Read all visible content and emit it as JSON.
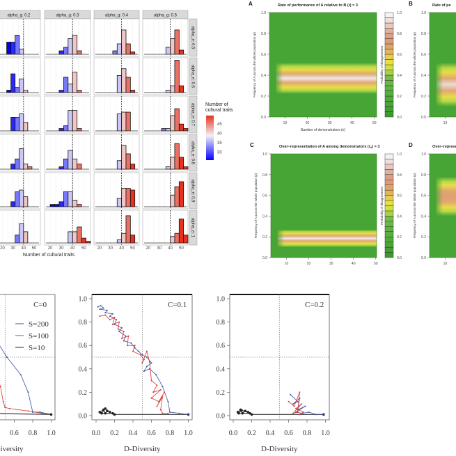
{
  "chart_data": [
    {
      "type": "bar",
      "strips_top": [
        "alpha_g: 0.2",
        "alpha_g: 0.3",
        "alpha_g: 0.4",
        "alpha_g: 0.5"
      ],
      "strips_right": [
        "alpha_e: 0.5",
        "alpha_e: 0.6",
        "alpha_e: 0.7",
        "alpha_e: 0.8",
        "alpha_e: 0.9",
        "alpha_e: 1"
      ],
      "x_ticks": [
        20,
        30,
        40,
        50
      ],
      "xlabel": "Number of cultural traits",
      "reference_line": 40,
      "bin_width": 4,
      "panels": [
        [
          {
            "start": 24,
            "heights": [
              0.35,
              0.35,
              0.55,
              0.15
            ]
          },
          {
            "start": 28,
            "heights": [
              0.1,
              0.2,
              0.45,
              0.55,
              0.1
            ]
          },
          {
            "start": 32,
            "heights": [
              0.1,
              0.3,
              0.7,
              0.3,
              0.07
            ]
          },
          {
            "start": 36,
            "heights": [
              0.2,
              0.45,
              0.7,
              0.12
            ]
          }
        ],
        [
          {
            "start": 24,
            "heights": [
              0.07,
              0.55,
              0.15,
              0.4,
              0.07
            ]
          },
          {
            "start": 28,
            "heights": [
              0.07,
              0.45,
              0.25,
              0.6,
              0.07
            ]
          },
          {
            "start": 36,
            "heights": [
              0.5,
              0.7,
              0.45,
              0.07
            ]
          },
          {
            "start": 36,
            "heights": [
              0.07,
              0.2,
              0.95,
              0.2
            ]
          }
        ],
        [
          {
            "start": 28,
            "heights": [
              0.4,
              0.4,
              0.5,
              0.25
            ]
          },
          {
            "start": 28,
            "heights": [
              0.07,
              0.15,
              0.6,
              0.6,
              0.07
            ]
          },
          {
            "start": 36,
            "heights": [
              0.5,
              0.55,
              0.55
            ]
          },
          {
            "start": 32,
            "heights": [
              0.07,
              0.07,
              0.45,
              0.65,
              0.2,
              0.07
            ]
          }
        ],
        [
          {
            "start": 28,
            "heights": [
              0.15,
              0.3,
              0.6,
              0.15,
              0.07
            ]
          },
          {
            "start": 28,
            "heights": [
              0.07,
              0.3,
              0.55,
              0.3,
              0.15
            ]
          },
          {
            "start": 36,
            "heights": [
              0.25,
              0.7,
              0.45,
              0.15
            ]
          },
          {
            "start": 36,
            "heights": [
              0.07,
              0.35,
              0.75,
              0.35,
              0.07
            ]
          }
        ],
        [
          {
            "start": 28,
            "heights": [
              0.15,
              0.45,
              0.5,
              0.3
            ]
          },
          {
            "start": 20,
            "heights": [
              0.07,
              0.07,
              0.15,
              0.45,
              0.45,
              0.2,
              0.07
            ]
          },
          {
            "start": 36,
            "heights": [
              0.25,
              0.55,
              0.55,
              0.5
            ]
          },
          {
            "start": 40,
            "heights": [
              0.35,
              0.6,
              0.75
            ]
          }
        ],
        [
          {
            "start": 32,
            "heights": [
              0.25,
              0.6,
              0.35
            ]
          },
          {
            "start": 36,
            "heights": [
              0.35,
              0.35,
              0.5,
              0.15,
              0.05
            ]
          },
          {
            "start": 36,
            "heights": [
              0.1,
              0.3,
              0.85,
              0.25
            ]
          },
          {
            "start": 40,
            "heights": [
              0.2,
              0.3,
              0.75,
              0.25
            ]
          }
        ]
      ],
      "legend": {
        "title_line1": "Number of",
        "title_line2": "cultural traits",
        "ticks": [
          45,
          40,
          35,
          30
        ],
        "color_high": "#e8321e",
        "color_mid": "#f4f0f4",
        "color_low": "#0000ff"
      }
    },
    {
      "type": "heatmap",
      "x_range": [
        3,
        51
      ],
      "y_range": [
        0,
        1
      ],
      "x_ticks": [
        10,
        20,
        30,
        40,
        50
      ],
      "y_ticks": [
        "0.0",
        "0.2",
        "0.4",
        "0.6",
        "0.8",
        "1.0"
      ],
      "colorbar": {
        "label": "Probability of disagreement",
        "ticks": [
          "0.0",
          "0.2",
          "0.4",
          "0.6",
          "0.8",
          "1.0"
        ],
        "colors": [
          "#3e9a2e",
          "#42a032",
          "#48a636",
          "#4eab3a",
          "#55b03e",
          "#5db443",
          "#68b848",
          "#76bd4c",
          "#a8d048",
          "#cfe040",
          "#e8e040",
          "#e8cc50",
          "#e4b45a",
          "#e0a468",
          "#dc9c78",
          "#dca088",
          "#e0b0a0",
          "#e8c8c0",
          "#f0e0dc",
          "#f6f2f2"
        ]
      },
      "panels": [
        {
          "letter": "A",
          "title": "Rate of performance of A relative to B (r) = 3",
          "xlabel": "Number of demonstrators (n)",
          "ylabel": "Frequency of A across the whole population (p)",
          "band": [
            0.22,
            0.52
          ],
          "peak_color": "#f2e6e6"
        },
        {
          "letter": "B",
          "title": "Rate of pe",
          "ylabel": "Frequency of A across the whole population (p)",
          "band": [
            0.1,
            0.52
          ],
          "peak_color": "#ecd8d8"
        },
        {
          "letter": "C",
          "title_pre": "Over−representation of A among demonstrators (r",
          "title_sub": "d",
          "title_post": ") = 3",
          "xlabel": "Number of demonstrators (n)",
          "ylabel": "Frequency of A across the whole population (p)",
          "band": [
            0.1,
            0.27
          ],
          "peak_color": "#f2e8e8"
        },
        {
          "letter": "D",
          "title": "Over−represen",
          "ylabel": "Frequency of A across the whole population (p)",
          "band": [
            0.4,
            0.78
          ],
          "peak_color": "#e0a070"
        }
      ]
    },
    {
      "type": "scatter",
      "xlabel": "D-Diversity",
      "x_range": [
        0,
        1
      ],
      "y_range": [
        0,
        1
      ],
      "x_ticks": [
        "0.0",
        "0.2",
        "0.4",
        "0.6",
        "0.8",
        "1.0"
      ],
      "y_ticks": [
        "0.0",
        "0.2",
        "0.4",
        "0.6",
        "0.8",
        "1.0"
      ],
      "reference_lines": {
        "x": 0.5,
        "y": 0.5
      },
      "legend": [
        {
          "name": "S=200",
          "color": "#3a4fa0"
        },
        {
          "name": "S=100",
          "color": "#d8342c"
        },
        {
          "name": "S=10",
          "color": "#222222"
        }
      ],
      "panels": [
        {
          "label": "C=0",
          "series": [
            {
              "name": "S=200",
              "color": "#3a4fa0",
              "points": [
                [
                  0.25,
                  0.85
                ],
                [
                  0.4,
                  0.65
                ],
                [
                  0.52,
                  0.5
                ],
                [
                  0.67,
                  0.35
                ],
                [
                  0.75,
                  0.2
                ],
                [
                  0.8,
                  0.03
                ],
                [
                  0.88,
                  0.03
                ],
                [
                  1.0,
                  0.01
                ]
              ]
            },
            {
              "name": "S=100",
              "color": "#d8342c",
              "points": [
                [
                  0.3,
                  0.5
                ],
                [
                  0.45,
                  0.25
                ],
                [
                  0.48,
                  0.12
                ],
                [
                  0.5,
                  0.07
                ],
                [
                  0.55,
                  0.06
                ],
                [
                  0.75,
                  0.04
                ],
                [
                  0.9,
                  0.02
                ],
                [
                  1.0,
                  0.01
                ]
              ]
            },
            {
              "name": "S=10",
              "color": "#222222",
              "points": [
                [
                  0.2,
                  0.02
                ],
                [
                  1.0,
                  0.01
                ]
              ]
            }
          ]
        },
        {
          "label": "C=0.1",
          "series": [
            {
              "name": "S=10",
              "color": "#222222",
              "points": [
                [
                  0.04,
                  0.03
                ],
                [
                  0.08,
                  0.05
                ],
                [
                  0.1,
                  0.02
                ],
                [
                  0.12,
                  0.04
                ],
                [
                  0.15,
                  0.03
                ],
                [
                  0.1,
                  0.06
                ],
                [
                  0.06,
                  0.02
                ],
                [
                  0.18,
                  0.02
                ],
                [
                  0.2,
                  0.01
                ],
                [
                  1.0,
                  0.01
                ]
              ]
            },
            {
              "name": "S=200",
              "color": "#3a4fa0",
              "points": [
                [
                  0.02,
                  0.93
                ],
                [
                  0.05,
                  0.94
                ],
                [
                  0.08,
                  0.92
                ],
                [
                  0.04,
                  0.91
                ],
                [
                  0.12,
                  0.9
                ],
                [
                  0.1,
                  0.88
                ],
                [
                  0.18,
                  0.87
                ],
                [
                  0.15,
                  0.85
                ],
                [
                  0.22,
                  0.82
                ],
                [
                  0.2,
                  0.78
                ],
                [
                  0.28,
                  0.75
                ],
                [
                  0.25,
                  0.72
                ],
                [
                  0.32,
                  0.68
                ],
                [
                  0.3,
                  0.64
                ],
                [
                  0.38,
                  0.62
                ],
                [
                  0.42,
                  0.58
                ],
                [
                  0.46,
                  0.55
                ],
                [
                  0.5,
                  0.52
                ],
                [
                  0.55,
                  0.5
                ],
                [
                  0.6,
                  0.45
                ],
                [
                  0.55,
                  0.42
                ],
                [
                  0.52,
                  0.38
                ],
                [
                  0.58,
                  0.4
                ],
                [
                  0.65,
                  0.35
                ],
                [
                  0.72,
                  0.25
                ],
                [
                  0.78,
                  0.12
                ],
                [
                  0.8,
                  0.03
                ],
                [
                  0.9,
                  0.02
                ],
                [
                  1.0,
                  0.01
                ]
              ]
            },
            {
              "name": "S=100",
              "color": "#d8342c",
              "points": [
                [
                  0.04,
                  0.85
                ],
                [
                  0.1,
                  0.86
                ],
                [
                  0.15,
                  0.82
                ],
                [
                  0.2,
                  0.84
                ],
                [
                  0.18,
                  0.78
                ],
                [
                  0.25,
                  0.8
                ],
                [
                  0.24,
                  0.74
                ],
                [
                  0.3,
                  0.72
                ],
                [
                  0.28,
                  0.66
                ],
                [
                  0.35,
                  0.68
                ],
                [
                  0.34,
                  0.6
                ],
                [
                  0.42,
                  0.6
                ],
                [
                  0.4,
                  0.55
                ],
                [
                  0.48,
                  0.52
                ],
                [
                  0.52,
                  0.48
                ],
                [
                  0.5,
                  0.45
                ],
                [
                  0.55,
                  0.55
                ],
                [
                  0.58,
                  0.46
                ],
                [
                  0.6,
                  0.3
                ],
                [
                  0.66,
                  0.26
                ],
                [
                  0.62,
                  0.2
                ],
                [
                  0.7,
                  0.22
                ],
                [
                  0.6,
                  0.15
                ],
                [
                  0.68,
                  0.12
                ],
                [
                  0.74,
                  0.2
                ],
                [
                  0.66,
                  0.08
                ],
                [
                  0.72,
                  0.16
                ],
                [
                  0.7,
                  0.05
                ],
                [
                  0.72,
                  0.02
                ],
                [
                  0.78,
                  0.02
                ]
              ]
            }
          ]
        },
        {
          "label": "C=0.2",
          "series": [
            {
              "name": "S=10",
              "color": "#222222",
              "points": [
                [
                  0.05,
                  0.03
                ],
                [
                  0.08,
                  0.05
                ],
                [
                  0.1,
                  0.02
                ],
                [
                  0.13,
                  0.04
                ],
                [
                  0.16,
                  0.03
                ],
                [
                  0.09,
                  0.045
                ],
                [
                  0.06,
                  0.02
                ],
                [
                  0.18,
                  0.02
                ],
                [
                  0.2,
                  0.01
                ],
                [
                  0.98,
                  0.01
                ]
              ]
            },
            {
              "name": "S=200",
              "color": "#3a4fa0",
              "points": [
                [
                  0.62,
                  0.18
                ],
                [
                  0.7,
                  0.12
                ],
                [
                  0.65,
                  0.1
                ],
                [
                  0.72,
                  0.15
                ],
                [
                  0.7,
                  0.05
                ],
                [
                  0.78,
                  0.08
                ],
                [
                  0.68,
                  0.03
                ],
                [
                  0.75,
                  0.02
                ],
                [
                  0.82,
                  0.03
                ],
                [
                  0.9,
                  0.01
                ],
                [
                  0.98,
                  0.01
                ]
              ]
            },
            {
              "name": "S=100",
              "color": "#d8342c",
              "points": [
                [
                  0.6,
                  0.12
                ],
                [
                  0.66,
                  0.08
                ],
                [
                  0.72,
                  0.2
                ],
                [
                  0.7,
                  0.03
                ],
                [
                  0.65,
                  0.02
                ],
                [
                  0.74,
                  0.1
                ],
                [
                  0.68,
                  0.06
                ],
                [
                  0.76,
                  0.03
                ],
                [
                  0.72,
                  0.01
                ]
              ]
            }
          ]
        }
      ]
    }
  ]
}
